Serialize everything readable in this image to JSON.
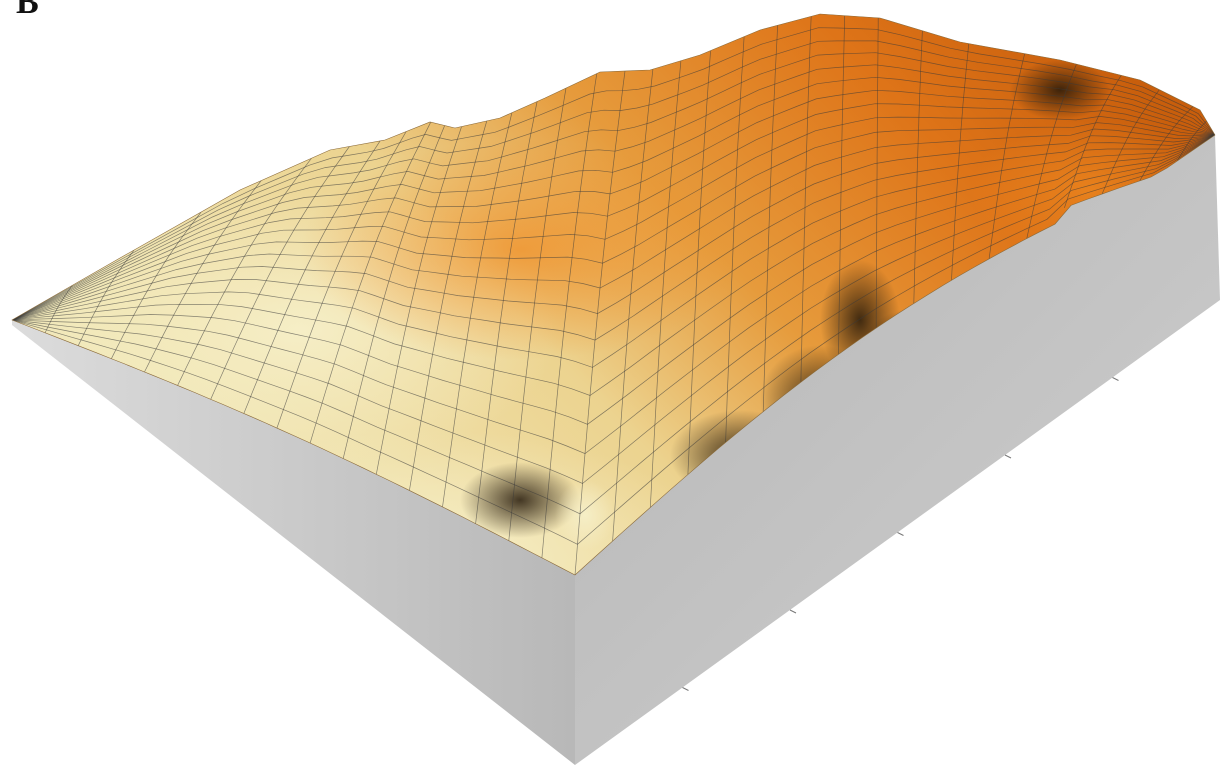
{
  "figure": {
    "panel_label": "B"
  },
  "colors": {
    "surface_low": "#efe6b4",
    "surface_mid": "#e8b65a",
    "surface_high": "#de7418",
    "surface_peak": "#c45a0a",
    "shadow": "#2e200c",
    "side_wall_light": "#d9d9d9",
    "side_wall_dark": "#a8a8a8",
    "grid_line": "#3a3a3a"
  },
  "icons": {
    "surface": "terrain-surface-mesh"
  }
}
